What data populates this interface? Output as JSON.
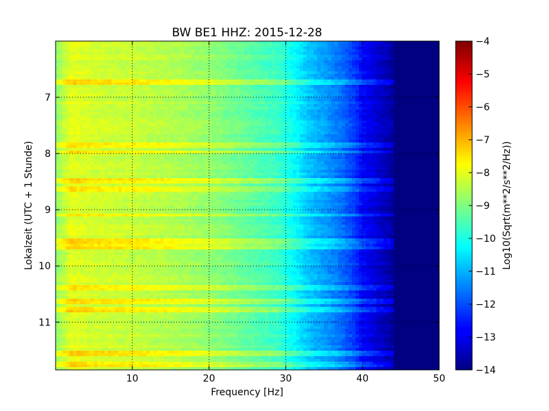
{
  "chart_data": {
    "type": "heatmap",
    "title": "BW BE1 HHZ: 2015-12-28",
    "xlabel": "Frequency [Hz]",
    "ylabel": "Lokalzeit (UTC + 1 Stunde)",
    "xlim": [
      0,
      50
    ],
    "ylim": [
      6.0,
      11.85
    ],
    "y_inverted": true,
    "x_ticks": [
      10,
      20,
      30,
      40,
      50
    ],
    "x_tick_labels": [
      "10",
      "20",
      "30",
      "40",
      "50"
    ],
    "y_ticks": [
      7,
      8,
      9,
      10,
      11
    ],
    "y_tick_labels": [
      "7",
      "8",
      "9",
      "10",
      "11"
    ],
    "grid": true,
    "colormap": "jet",
    "colorbar": {
      "label": "Log10(Sqrt(m**2/s**2/Hz))",
      "range": [
        -14,
        -4
      ],
      "ticks": [
        -4,
        -5,
        -6,
        -7,
        -8,
        -9,
        -10,
        -11,
        -12,
        -13,
        -14
      ],
      "tick_labels": [
        "−4",
        "−5",
        "−6",
        "−7",
        "−8",
        "−9",
        "−10",
        "−11",
        "−12",
        "−13",
        "−14"
      ]
    },
    "spectrum_profile": {
      "frequency_hz": [
        0,
        1,
        2,
        5,
        10,
        15,
        20,
        25,
        29,
        31,
        33,
        35,
        37,
        39,
        40,
        42,
        44,
        45,
        46,
        50
      ],
      "log10_amplitude": [
        -8.9,
        -8.4,
        -8.0,
        -8.2,
        -8.3,
        -8.5,
        -8.8,
        -9.3,
        -9.7,
        -10.2,
        -10.8,
        -11.2,
        -11.6,
        -12.2,
        -12.7,
        -13.2,
        -13.7,
        -13.95,
        -14.0,
        -14.0
      ]
    },
    "elevated_noise_bands_hours": [
      6.72,
      7.85,
      7.97,
      8.5,
      8.62,
      9.1,
      9.55,
      9.67,
      10.37,
      10.63,
      10.77,
      11.55,
      11.75
    ],
    "elevated_band_increase_log10": 0.7,
    "colors": {
      "background": "#ffffff",
      "axis": "#000000",
      "grid": "#000000"
    }
  }
}
